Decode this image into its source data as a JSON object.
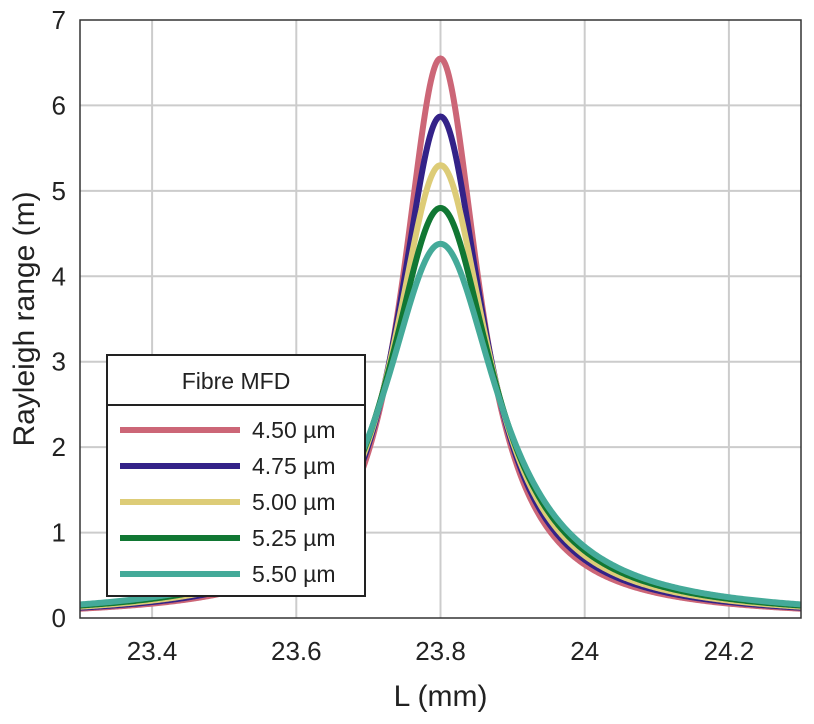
{
  "chart_data": {
    "type": "line",
    "title": "",
    "xlabel": "L (mm)",
    "ylabel": "Rayleigh range (m)",
    "xlim": [
      23.3,
      24.3
    ],
    "ylim": [
      0,
      7
    ],
    "xticks": [
      23.4,
      23.6,
      23.8,
      24,
      24.2
    ],
    "xtick_labels": [
      "23.4",
      "23.6",
      "23.8",
      "24",
      "24.2"
    ],
    "yticks": [
      0,
      1,
      2,
      3,
      4,
      5,
      6,
      7
    ],
    "ytick_labels": [
      "0",
      "1",
      "2",
      "3",
      "4",
      "5",
      "6",
      "7"
    ],
    "grid": true,
    "legend": {
      "title": "Fibre MFD",
      "position": "lower-left"
    },
    "series": [
      {
        "name": "4.50 µm",
        "color": "#cc6677",
        "peak_x": 23.8,
        "peak_y": 6.55,
        "half_width_mm": 0.065
      },
      {
        "name": "4.75 µm",
        "color": "#332288",
        "peak_x": 23.8,
        "peak_y": 5.87,
        "half_width_mm": 0.0725
      },
      {
        "name": "5.00 µm",
        "color": "#ddcc77",
        "peak_x": 23.8,
        "peak_y": 5.3,
        "half_width_mm": 0.08
      },
      {
        "name": "5.25 µm",
        "color": "#117733",
        "peak_x": 23.8,
        "peak_y": 4.8,
        "half_width_mm": 0.0885
      },
      {
        "name": "5.50 µm",
        "color": "#44aa99",
        "peak_x": 23.8,
        "peak_y": 4.38,
        "half_width_mm": 0.097
      }
    ]
  }
}
